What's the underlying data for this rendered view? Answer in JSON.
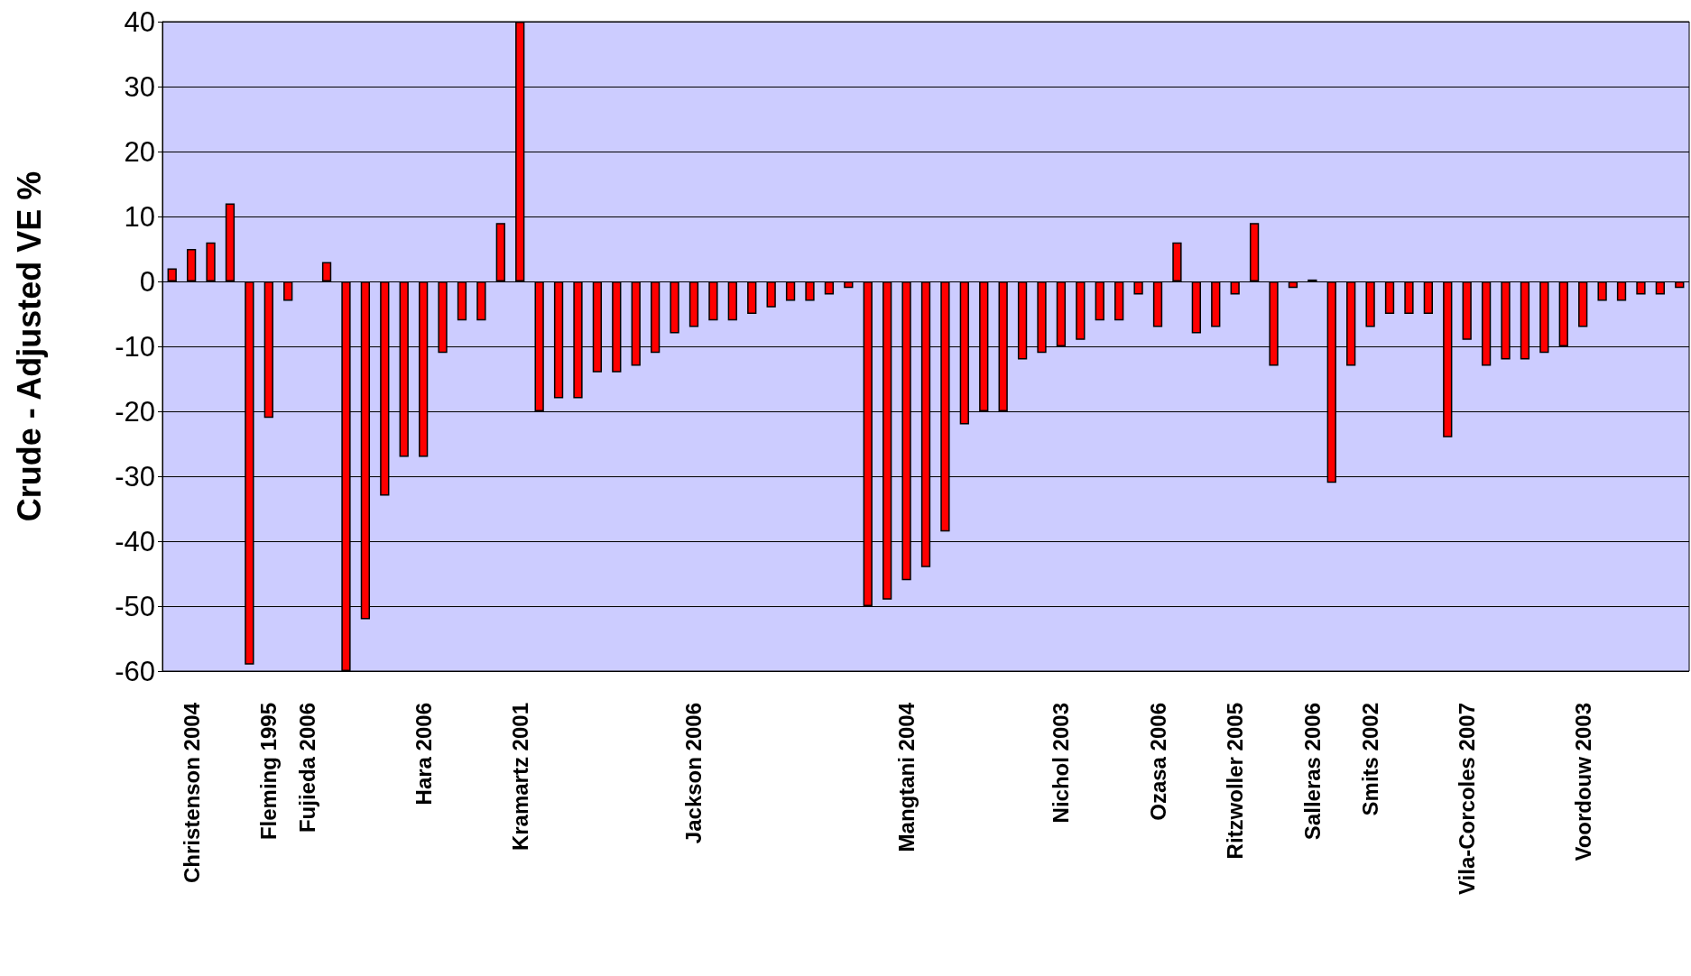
{
  "chart_data": {
    "type": "bar",
    "ylabel": "Crude - Adjusted VE %",
    "categories": [
      null,
      "Christenson 2004",
      null,
      null,
      null,
      "Fleming 1995",
      null,
      "Fujieda 2006",
      null,
      null,
      null,
      null,
      null,
      "Hara 2006",
      null,
      null,
      null,
      null,
      "Kramartz 2001",
      null,
      null,
      null,
      null,
      null,
      null,
      null,
      null,
      "Jackson 2006",
      null,
      null,
      null,
      null,
      null,
      null,
      null,
      null,
      null,
      null,
      "Mangtani 2004",
      null,
      null,
      null,
      null,
      null,
      null,
      null,
      "Nichol 2003",
      null,
      null,
      null,
      null,
      "Ozasa 2006",
      null,
      null,
      null,
      "Ritzwoller 2005",
      null,
      null,
      null,
      "Salleras 2006",
      null,
      null,
      "Smits 2002",
      null,
      null,
      null,
      null,
      "Vila-Corcoles 2007",
      null,
      null,
      null,
      null,
      null,
      "Voordouw 2003",
      null,
      null,
      null,
      null,
      null
    ],
    "values": [
      2,
      5,
      6,
      12,
      -59,
      -21,
      -3,
      null,
      3,
      -60,
      -52,
      -33,
      -27,
      -27,
      -11,
      -6,
      -6,
      9,
      40,
      -20,
      -18,
      -18,
      -14,
      -14,
      -13,
      -11,
      -8,
      -7,
      -6,
      -6,
      -5,
      -4,
      -3,
      -3,
      -2,
      -1,
      -50,
      -49,
      -46,
      -44,
      -38.5,
      -22,
      -20,
      -20,
      -12,
      -11,
      -10,
      -9,
      -6,
      -6,
      -2,
      -7,
      6,
      -8,
      -7,
      -2,
      9,
      -13,
      -1,
      0.3,
      -31,
      -13,
      -7,
      -5,
      -5,
      -5,
      -24,
      -9,
      -13,
      -12,
      -12,
      -11,
      -10,
      -7,
      -3,
      -3,
      -2,
      -2,
      -1
    ],
    "color": "#ff0000",
    "ylim": [
      -60,
      40
    ],
    "yticks": [
      -60,
      -50,
      -40,
      -30,
      -20,
      -10,
      0,
      10,
      20,
      30,
      40
    ],
    "grid": "y"
  }
}
